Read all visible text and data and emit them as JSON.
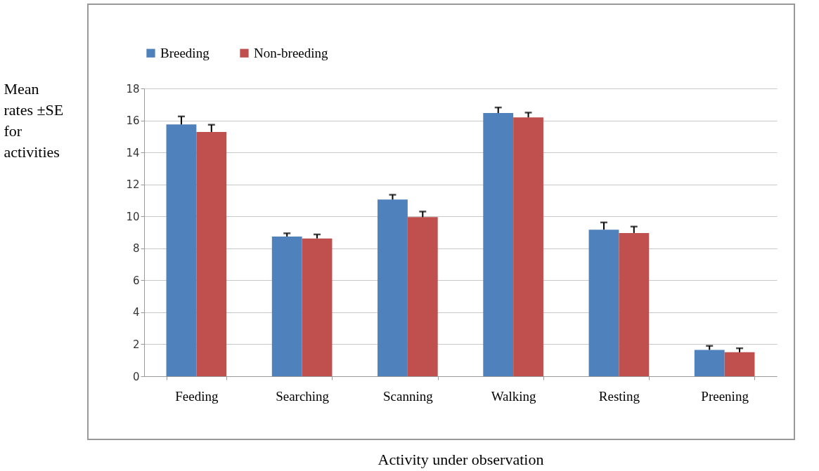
{
  "chart_data": {
    "type": "bar",
    "xlabel": "Activity under observation",
    "ylabel": "Mean rates ±SE for activities",
    "categories": [
      "Feeding",
      "Searching",
      "Scanning",
      "Walking",
      "Resting",
      "Preening"
    ],
    "series": [
      {
        "name": "Breeding",
        "color": "#4f81bd",
        "values": [
          15.75,
          8.74,
          11.05,
          16.46,
          9.17,
          1.65
        ],
        "errors": [
          0.5,
          0.2,
          0.3,
          0.35,
          0.45,
          0.25
        ]
      },
      {
        "name": "Non-breeding",
        "color": "#c0504d",
        "values": [
          15.28,
          8.62,
          9.95,
          16.19,
          8.96,
          1.5
        ],
        "errors": [
          0.45,
          0.25,
          0.35,
          0.3,
          0.4,
          0.25
        ]
      }
    ],
    "ylim": [
      0,
      18
    ],
    "yticks": [
      0,
      2,
      4,
      6,
      8,
      10,
      12,
      14,
      16,
      18
    ],
    "grid": "y",
    "legend": "top"
  }
}
